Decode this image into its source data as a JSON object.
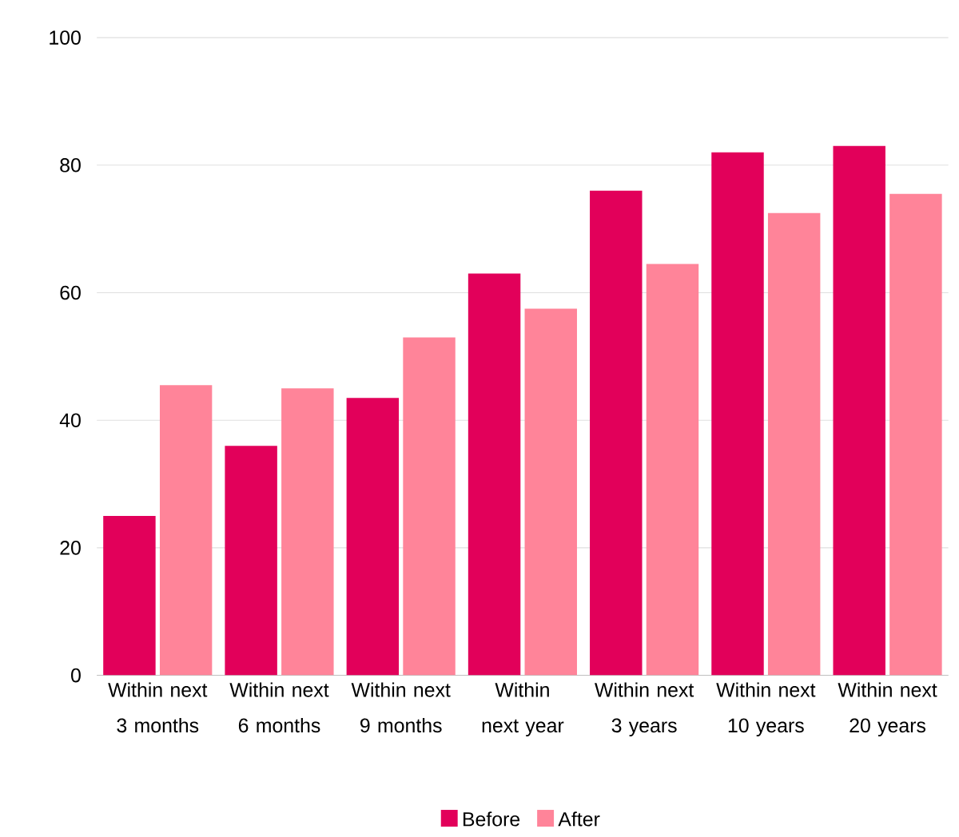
{
  "chart_data": {
    "type": "bar",
    "categories": [
      "Within next 3 months",
      "Within next 6 months",
      "Within next 9 months",
      "Within next year",
      "Within next 3 years",
      "Within next 10 years",
      "Within next 20 years"
    ],
    "series": [
      {
        "name": "Before",
        "color": "#e2005a",
        "values": [
          25,
          36,
          43.5,
          63,
          76,
          82,
          83
        ]
      },
      {
        "name": "After",
        "color": "#ff8499",
        "values": [
          45.5,
          45,
          53,
          57.5,
          64.5,
          72.5,
          75.5
        ]
      }
    ],
    "ylim": [
      0,
      100
    ],
    "yticks": [
      0,
      20,
      40,
      60,
      80,
      100
    ],
    "grid": "y",
    "legend": "bottom"
  }
}
